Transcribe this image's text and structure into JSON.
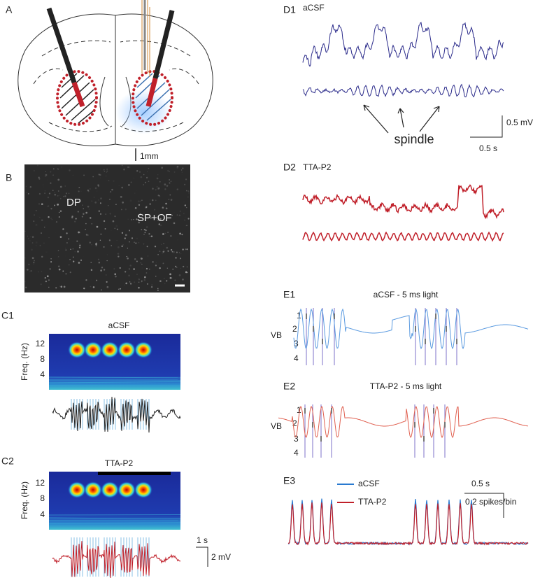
{
  "panels": {
    "A": {
      "label": "A",
      "scale_bar": "1mm"
    },
    "B": {
      "label": "B",
      "regions": [
        "DP",
        "SP+OF"
      ]
    },
    "C1": {
      "label": "C1",
      "title": "aCSF",
      "y_axis_label": "Freq. (Hz)",
      "yticks": [
        "12",
        "8",
        "4"
      ]
    },
    "C2": {
      "label": "C2",
      "title": "TTA-P2",
      "y_axis_label": "Freq. (Hz)",
      "yticks": [
        "12",
        "8",
        "4"
      ],
      "scale_bars": [
        "1 s",
        "2 mV"
      ]
    },
    "D1": {
      "label": "D1",
      "title": "aCSF",
      "annotation": "spindle",
      "scale_bars": [
        "0.5 mV",
        "0.5 s"
      ]
    },
    "D2": {
      "label": "D2",
      "title": "TTA-P2"
    },
    "E1": {
      "label": "E1",
      "title": "aCSF - 5 ms light",
      "row_label": "VB",
      "rows": [
        "1",
        "2",
        "3",
        "4"
      ]
    },
    "E2": {
      "label": "E2",
      "title": "TTA-P2 - 5 ms light",
      "row_label": "VB",
      "rows": [
        "1",
        "2",
        "3",
        "4"
      ]
    },
    "E3": {
      "label": "E3",
      "legend": [
        "aCSF",
        "TTA-P2"
      ],
      "scale_bars": [
        "0.5 s",
        "0.2 spikes/bin"
      ]
    }
  }
}
